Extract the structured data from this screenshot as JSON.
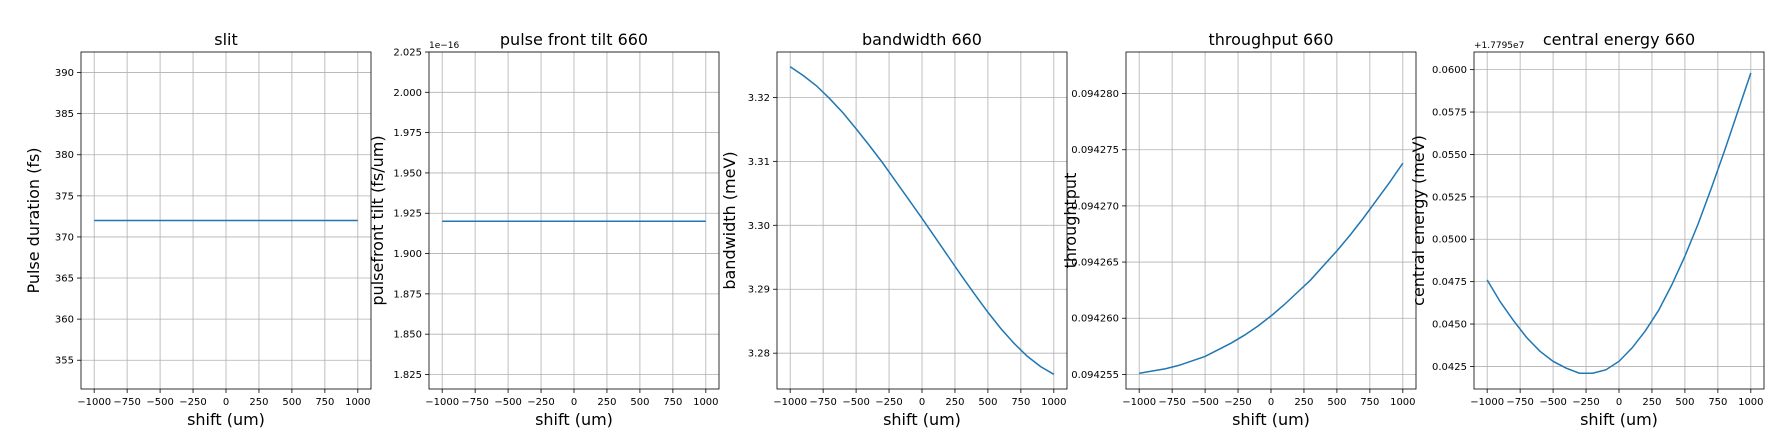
{
  "chart_data": [
    {
      "type": "line",
      "title": "slit",
      "xlabel": "shift (um)",
      "ylabel": "Pulse duration (fs)",
      "offset_text": "",
      "xlim": [
        -1100,
        1100
      ],
      "ylim": [
        351.5,
        392.5
      ],
      "xticks": [
        -1000,
        -750,
        -500,
        -250,
        0,
        250,
        500,
        750,
        1000
      ],
      "yticks": [
        355,
        360,
        365,
        370,
        375,
        380,
        385,
        390
      ],
      "ytick_labels": [
        "355",
        "360",
        "365",
        "370",
        "375",
        "380",
        "385",
        "390"
      ],
      "grid": true,
      "series": [
        {
          "color": "#1f77b4",
          "x": [
            -1000,
            1000
          ],
          "y": [
            372,
            372
          ]
        }
      ]
    },
    {
      "type": "line",
      "title": "pulse front tilt 660",
      "xlabel": "shift (um)",
      "ylabel": "pulsefront tilt (fs/um)",
      "offset_text": "1e−16",
      "xlim": [
        -1100,
        1100
      ],
      "ylim": [
        1.816,
        2.025
      ],
      "xticks": [
        -1000,
        -750,
        -500,
        -250,
        0,
        250,
        500,
        750,
        1000
      ],
      "yticks": [
        1.825,
        1.85,
        1.875,
        1.9,
        1.925,
        1.95,
        1.975,
        2.0,
        2.025
      ],
      "ytick_labels": [
        "1.825",
        "1.850",
        "1.875",
        "1.900",
        "1.925",
        "1.950",
        "1.975",
        "2.000",
        "2.025"
      ],
      "grid": true,
      "series": [
        {
          "color": "#1f77b4",
          "x": [
            -1000,
            1000
          ],
          "y": [
            1.92,
            1.92
          ]
        }
      ]
    },
    {
      "type": "line",
      "title": "bandwidth 660",
      "xlabel": "shift (um)",
      "ylabel": "bandwidth (meV)",
      "offset_text": "",
      "xlim": [
        -1100,
        1100
      ],
      "ylim": [
        3.2744,
        3.3271
      ],
      "xticks": [
        -1000,
        -750,
        -500,
        -250,
        0,
        250,
        500,
        750,
        1000
      ],
      "yticks": [
        3.28,
        3.29,
        3.3,
        3.31,
        3.32
      ],
      "ytick_labels": [
        "3.28",
        "3.29",
        "3.30",
        "3.31",
        "3.32"
      ],
      "grid": true,
      "series": [
        {
          "color": "#1f77b4",
          "x": [
            -1000,
            -900,
            -800,
            -700,
            -600,
            -500,
            -400,
            -300,
            -200,
            -100,
            0,
            100,
            200,
            300,
            400,
            500,
            600,
            700,
            800,
            900,
            1000
          ],
          "y": [
            3.3248,
            3.3234,
            3.3218,
            3.3198,
            3.3176,
            3.3151,
            3.3125,
            3.3098,
            3.3069,
            3.304,
            3.3011,
            3.2981,
            3.2951,
            3.2921,
            3.2892,
            3.2864,
            3.2838,
            3.2815,
            3.2795,
            3.2779,
            3.2767
          ]
        }
      ]
    },
    {
      "type": "line",
      "title": "throughput 660",
      "xlabel": "shift (um)",
      "ylabel": "throughtput",
      "offset_text": "",
      "xlim": [
        -1100,
        1100
      ],
      "ylim": [
        0.0942537,
        0.0942837
      ],
      "xticks": [
        -1000,
        -750,
        -500,
        -250,
        0,
        250,
        500,
        750,
        1000
      ],
      "yticks": [
        0.094255,
        0.09426,
        0.094265,
        0.09427,
        0.094275,
        0.09428
      ],
      "ytick_labels": [
        "0.094255",
        "0.094260",
        "0.094265",
        "0.094270",
        "0.094275",
        "0.094280"
      ],
      "grid": true,
      "series": [
        {
          "color": "#1f77b4",
          "x": [
            -1000,
            -900,
            -800,
            -700,
            -600,
            -500,
            -400,
            -300,
            -200,
            -100,
            0,
            100,
            200,
            300,
            400,
            500,
            600,
            700,
            800,
            900,
            1000
          ],
          "y": [
            0.0942551,
            0.0942553,
            0.0942555,
            0.0942558,
            0.0942562,
            0.0942566,
            0.0942572,
            0.0942578,
            0.0942585,
            0.0942593,
            0.0942602,
            0.0942612,
            0.0942623,
            0.0942634,
            0.0942647,
            0.094266,
            0.0942674,
            0.0942689,
            0.0942705,
            0.0942721,
            0.0942738
          ]
        }
      ]
    },
    {
      "type": "line",
      "title": "central energy 660",
      "xlabel": "shift (um)",
      "ylabel": "central energy (meV)",
      "offset_text": "+1.7795e7",
      "xlim": [
        -1100,
        1100
      ],
      "ylim": [
        0.04117,
        0.06104
      ],
      "xticks": [
        -1000,
        -750,
        -500,
        -250,
        0,
        250,
        500,
        750,
        1000
      ],
      "yticks": [
        0.0425,
        0.045,
        0.0475,
        0.05,
        0.0525,
        0.055,
        0.0575,
        0.06
      ],
      "ytick_labels": [
        "0.0425",
        "0.0450",
        "0.0475",
        "0.0500",
        "0.0525",
        "0.0550",
        "0.0575",
        "0.0600"
      ],
      "grid": true,
      "series": [
        {
          "color": "#1f77b4",
          "x": [
            -1000,
            -900,
            -800,
            -700,
            -600,
            -500,
            -400,
            -300,
            -250,
            -200,
            -100,
            0,
            100,
            200,
            300,
            400,
            500,
            600,
            700,
            800,
            900,
            1000
          ],
          "y": [
            0.0476,
            0.0463,
            0.0452,
            0.0442,
            0.0434,
            0.0428,
            0.0424,
            0.0421,
            0.0421,
            0.0421,
            0.0423,
            0.0428,
            0.0436,
            0.0446,
            0.0458,
            0.0473,
            0.049,
            0.0509,
            0.053,
            0.0552,
            0.0575,
            0.0598
          ]
        }
      ]
    }
  ]
}
